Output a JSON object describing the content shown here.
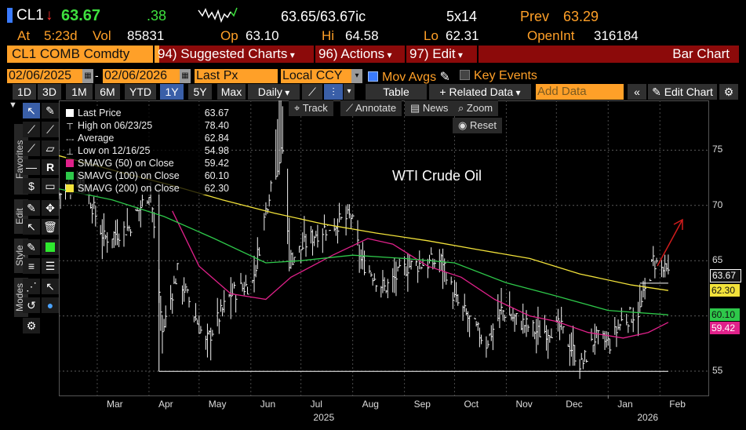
{
  "quote": {
    "ticker": "CL1",
    "arrow": "↓",
    "last": "63.67",
    "change": ".38",
    "bid_ask": "63.65/63.67ic",
    "size": "5x14",
    "prev_label": "Prev",
    "prev": "63.29",
    "at_label": "At",
    "time": "5:23d",
    "vol_label": "Vol",
    "vol": "85831",
    "op_label": "Op",
    "open": "63.10",
    "hi_label": "Hi",
    "high": "64.58",
    "lo_label": "Lo",
    "low": "62.31",
    "oi_label": "OpenInt",
    "open_int": "316184"
  },
  "command_bar": {
    "security": "CL1 COMB Comdty",
    "suggested": "94) Suggested Charts",
    "actions": "96) Actions",
    "edit": "97) Edit",
    "title": "Bar Chart"
  },
  "inputs": {
    "start_date": "02/06/2025",
    "end_date": "02/06/2026",
    "field": "Last Px",
    "currency": "Local CCY",
    "mov_avgs": "Mov Avgs",
    "key_events": "Key Events"
  },
  "toolbar": {
    "ranges": [
      "1D",
      "3D",
      "1M",
      "6M",
      "YTD",
      "1Y",
      "5Y",
      "Max"
    ],
    "active_range": "1Y",
    "frequency": "Daily",
    "table": "Table",
    "related": "+ Related Data",
    "add_data_placeholder": "Add Data",
    "edit_chart": "Edit Chart"
  },
  "sidebar_tabs": [
    "Favorites",
    "Edit",
    "Style",
    "Modes"
  ],
  "overlay_tools": {
    "track": "Track",
    "annotate": "Annotate",
    "news": "News",
    "zoom": "Zoom",
    "reset": "Reset"
  },
  "legend": [
    {
      "label": "Last Price",
      "value": "63.67",
      "color": "#ffffff",
      "marker": "box"
    },
    {
      "label": "High on 06/23/25",
      "value": "78.40",
      "color": "#ffffff",
      "marker": "T"
    },
    {
      "label": "Average",
      "value": "62.84",
      "color": "#ffffff",
      "marker": "avg"
    },
    {
      "label": "Low on 12/16/25",
      "value": "54.98",
      "color": "#ffffff",
      "marker": "L"
    },
    {
      "label": "SMAVG (50)  on Close",
      "value": "59.42",
      "color": "#e0218a",
      "marker": "box"
    },
    {
      "label": "SMAVG (100)  on Close",
      "value": "60.10",
      "color": "#2ec84a",
      "marker": "box"
    },
    {
      "label": "SMAVG (200)  on Close",
      "value": "62.30",
      "color": "#f2e23a",
      "marker": "box"
    }
  ],
  "annotation": "WTI Crude Oil",
  "chart_data": {
    "type": "bar",
    "title": "WTI Crude Oil",
    "xlabel": "",
    "ylabel": "",
    "ylim": [
      52.8,
      79.5
    ],
    "y_ticks": [
      55,
      60,
      65,
      70,
      75
    ],
    "x_months": [
      "Mar",
      "Apr",
      "May",
      "Jun",
      "Jul",
      "Aug",
      "Sep",
      "Oct",
      "Nov",
      "Dec",
      "Jan",
      "Feb"
    ],
    "year_labels": [
      "2025",
      "2026"
    ],
    "grid": true,
    "price_series": {
      "name": "Last Price",
      "anchors": [
        [
          "2025-02-06",
          71.0
        ],
        [
          "2025-02-20",
          72.5
        ],
        [
          "2025-03-05",
          67.0
        ],
        [
          "2025-03-20",
          68.0
        ],
        [
          "2025-04-02",
          71.5
        ],
        [
          "2025-04-09",
          58.5
        ],
        [
          "2025-04-18",
          64.0
        ],
        [
          "2025-05-05",
          57.5
        ],
        [
          "2025-05-20",
          62.0
        ],
        [
          "2025-06-02",
          63.0
        ],
        [
          "2025-06-13",
          72.0
        ],
        [
          "2025-06-20",
          75.0
        ],
        [
          "2025-06-24",
          65.0
        ],
        [
          "2025-07-10",
          67.5
        ],
        [
          "2025-07-31",
          69.0
        ],
        [
          "2025-08-06",
          65.0
        ],
        [
          "2025-08-20",
          62.5
        ],
        [
          "2025-09-03",
          64.5
        ],
        [
          "2025-09-24",
          65.0
        ],
        [
          "2025-10-01",
          61.5
        ],
        [
          "2025-10-20",
          57.5
        ],
        [
          "2025-10-29",
          60.5
        ],
        [
          "2025-11-20",
          58.5
        ],
        [
          "2025-12-03",
          59.0
        ],
        [
          "2025-12-16",
          55.5
        ],
        [
          "2025-12-24",
          58.0
        ],
        [
          "2026-01-02",
          57.5
        ],
        [
          "2026-01-09",
          59.5
        ],
        [
          "2026-01-20",
          60.5
        ],
        [
          "2026-01-28",
          65.0
        ],
        [
          "2026-02-06",
          63.67
        ]
      ]
    },
    "series": [
      {
        "name": "SMAVG (50)  on Close",
        "color": "#e0218a",
        "points": [
          [
            "2025-04-15",
            69.5
          ],
          [
            "2025-05-01",
            64.5
          ],
          [
            "2025-05-20",
            62.0
          ],
          [
            "2025-06-10",
            61.5
          ],
          [
            "2025-06-25",
            63.5
          ],
          [
            "2025-07-20",
            65.5
          ],
          [
            "2025-08-10",
            67.0
          ],
          [
            "2025-08-25",
            66.5
          ],
          [
            "2025-09-15",
            64.5
          ],
          [
            "2025-10-05",
            63.5
          ],
          [
            "2025-10-25",
            61.5
          ],
          [
            "2025-11-15",
            60.0
          ],
          [
            "2025-12-01",
            59.5
          ],
          [
            "2025-12-20",
            58.5
          ],
          [
            "2026-01-10",
            58.0
          ],
          [
            "2026-01-25",
            58.5
          ],
          [
            "2026-02-06",
            59.42
          ]
        ]
      },
      {
        "name": "SMAVG (100)  on Close",
        "color": "#2ec84a",
        "points": [
          [
            "2025-02-06",
            71.5
          ],
          [
            "2025-03-10",
            70.5
          ],
          [
            "2025-04-10",
            69.0
          ],
          [
            "2025-05-10",
            67.0
          ],
          [
            "2025-06-10",
            64.8
          ],
          [
            "2025-07-01",
            65.0
          ],
          [
            "2025-08-01",
            65.5
          ],
          [
            "2025-09-01",
            65.2
          ],
          [
            "2025-10-01",
            64.8
          ],
          [
            "2025-11-01",
            63.0
          ],
          [
            "2025-12-01",
            61.8
          ],
          [
            "2026-01-01",
            60.5
          ],
          [
            "2026-02-06",
            60.1
          ]
        ]
      },
      {
        "name": "SMAVG (200)  on Close",
        "color": "#f2e23a",
        "points": [
          [
            "2025-02-06",
            74.5
          ],
          [
            "2025-03-15",
            73.0
          ],
          [
            "2025-04-15",
            71.8
          ],
          [
            "2025-05-15",
            70.5
          ],
          [
            "2025-06-15",
            69.3
          ],
          [
            "2025-07-15",
            68.3
          ],
          [
            "2025-08-15",
            67.5
          ],
          [
            "2025-09-15",
            66.8
          ],
          [
            "2025-10-15",
            66.0
          ],
          [
            "2025-11-15",
            65.2
          ],
          [
            "2025-12-15",
            63.8
          ],
          [
            "2026-01-15",
            62.8
          ],
          [
            "2026-02-06",
            62.3
          ]
        ]
      }
    ],
    "price_labels": [
      {
        "value": "63.67",
        "y": 63.67,
        "color": "#ffffff"
      },
      {
        "value": "62.30",
        "y": 62.3,
        "color": "#f2e23a"
      },
      {
        "value": "60.10",
        "y": 60.1,
        "color": "#2ec84a"
      },
      {
        "value": "59.42",
        "y": 59.42,
        "color": "#e0218a"
      }
    ]
  }
}
